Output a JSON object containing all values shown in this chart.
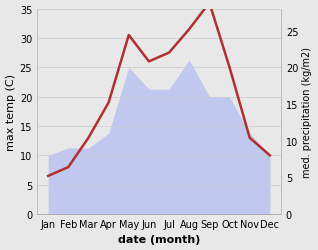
{
  "months": [
    "Jan",
    "Feb",
    "Mar",
    "Apr",
    "May",
    "Jun",
    "Jul",
    "Aug",
    "Sep",
    "Oct",
    "Nov",
    "Dec"
  ],
  "temp": [
    6.5,
    8.0,
    13.0,
    19.0,
    30.5,
    26.0,
    27.5,
    31.5,
    36.0,
    25.0,
    13.0,
    10.0
  ],
  "precip": [
    8,
    9,
    9,
    11,
    20,
    17,
    17,
    21,
    16,
    16,
    11,
    8
  ],
  "temp_color": "#b03030",
  "precip_fill_color": "#c0c8f0",
  "title": "",
  "xlabel": "date (month)",
  "ylabel_left": "max temp (C)",
  "ylabel_right": "med. precipitation (kg/m2)",
  "ylim_left": [
    0,
    35
  ],
  "ylim_right": [
    0,
    28
  ],
  "yticks_left": [
    0,
    5,
    10,
    15,
    20,
    25,
    30,
    35
  ],
  "yticks_right": [
    0,
    5,
    10,
    15,
    20,
    25
  ],
  "bg_color": "#e8e8e8",
  "plot_bg_color": "#ffffff"
}
